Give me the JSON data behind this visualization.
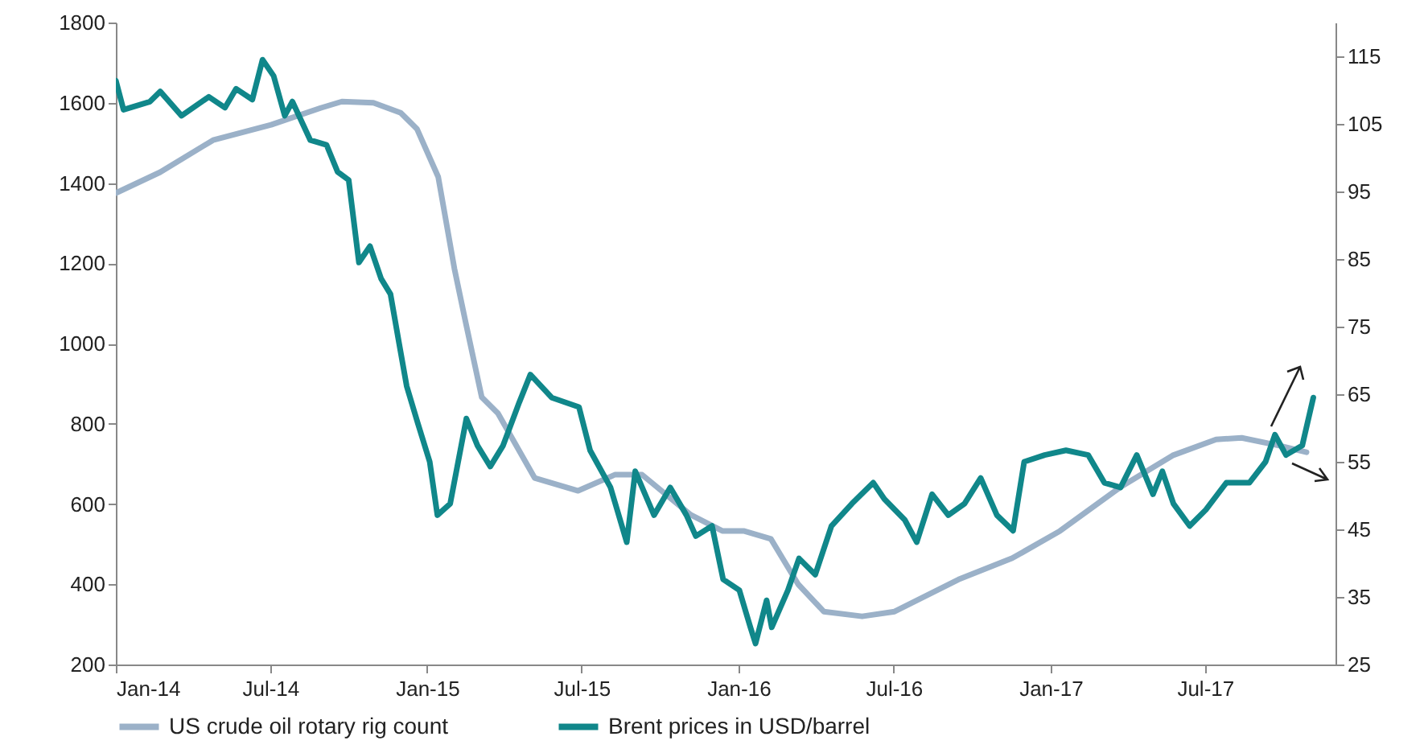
{
  "chart_data": {
    "type": "line",
    "xlim": [
      "2014-01-01",
      "2017-12-01"
    ],
    "xticks": [
      {
        "value": "2014-01-01",
        "label": "Jan-14"
      },
      {
        "value": "2014-07-01",
        "label": "Jul-14"
      },
      {
        "value": "2015-01-01",
        "label": "Jan-15"
      },
      {
        "value": "2015-07-01",
        "label": "Jul-15"
      },
      {
        "value": "2016-01-01",
        "label": "Jan-16"
      },
      {
        "value": "2016-07-01",
        "label": "Jul-16"
      },
      {
        "value": "2017-01-01",
        "label": "Jan-17"
      },
      {
        "value": "2017-07-01",
        "label": "Jul-17"
      }
    ],
    "ylim": [
      200,
      1800
    ],
    "yticks": [
      200,
      400,
      600,
      800,
      1000,
      1200,
      1400,
      1600,
      1800
    ],
    "y2lim": [
      25,
      120
    ],
    "y2ticks": [
      25,
      35,
      45,
      55,
      65,
      75,
      85,
      95,
      105,
      115
    ],
    "grid": false,
    "legend": "bottom",
    "line_style": "solid",
    "series": [
      {
        "name": "US crude oil rotary rig count",
        "color": "#9bb1c8",
        "x": [
          "2014-01-01",
          "2014-02-22",
          "2014-04-25",
          "2014-07-02",
          "2014-08-29",
          "2014-09-23",
          "2014-10-30",
          "2014-12-01",
          "2014-12-20",
          "2015-01-14",
          "2015-02-02",
          "2015-02-15",
          "2015-03-06",
          "2015-03-25",
          "2015-05-07",
          "2015-06-27",
          "2015-08-09",
          "2015-09-10",
          "2015-11-06",
          "2015-12-13",
          "2016-01-07",
          "2016-02-08",
          "2016-03-11",
          "2016-04-10",
          "2016-05-25",
          "2016-07-02",
          "2016-09-15",
          "2016-11-17",
          "2017-01-12",
          "2017-03-23",
          "2017-05-24",
          "2017-07-14",
          "2017-08-13",
          "2017-09-27",
          "2017-10-28"
        ],
        "values": [
          1375,
          1427,
          1507,
          1545,
          1587,
          1603,
          1600,
          1575,
          1535,
          1415,
          1186,
          1054,
          866,
          826,
          665,
          633,
          673,
          673,
          573,
          533,
          533,
          513,
          400,
          332,
          320,
          332,
          412,
          465,
          533,
          641,
          721,
          761,
          765,
          745,
          729
        ]
      },
      {
        "name": "Brent prices in USD/barrel",
        "color": "#10878a",
        "axis": "y2",
        "x": [
          "2014-01-01",
          "2014-01-10",
          "2014-02-10",
          "2014-02-22",
          "2014-03-19",
          "2014-04-20",
          "2014-05-09",
          "2014-05-22",
          "2014-06-10",
          "2014-06-22",
          "2014-07-05",
          "2014-07-18",
          "2014-07-27",
          "2014-08-17",
          "2014-09-05",
          "2014-09-18",
          "2014-10-01",
          "2014-10-13",
          "2014-10-26",
          "2014-11-08",
          "2014-11-19",
          "2014-11-29",
          "2014-12-08",
          "2014-12-21",
          "2015-01-04",
          "2015-01-13",
          "2015-01-28",
          "2015-02-16",
          "2015-03-01",
          "2015-03-16",
          "2015-03-31",
          "2015-04-19",
          "2015-05-02",
          "2015-05-27",
          "2015-06-28",
          "2015-07-11",
          "2015-08-04",
          "2015-08-23",
          "2015-09-02",
          "2015-09-24",
          "2015-10-13",
          "2015-11-01",
          "2015-11-12",
          "2015-12-01",
          "2015-12-14",
          "2016-01-02",
          "2016-01-15",
          "2016-01-21",
          "2016-02-03",
          "2016-02-09",
          "2016-02-28",
          "2016-03-12",
          "2016-03-31",
          "2016-04-19",
          "2016-05-13",
          "2016-06-07",
          "2016-06-20",
          "2016-07-14",
          "2016-07-28",
          "2016-08-15",
          "2016-09-03",
          "2016-09-22",
          "2016-10-11",
          "2016-10-30",
          "2016-11-18",
          "2016-12-01",
          "2016-12-25",
          "2017-01-19",
          "2017-02-14",
          "2017-03-05",
          "2017-03-24",
          "2017-04-12",
          "2017-05-01",
          "2017-05-12",
          "2017-05-25",
          "2017-06-13",
          "2017-07-02",
          "2017-07-26",
          "2017-08-22",
          "2017-09-10",
          "2017-09-21",
          "2017-10-04",
          "2017-10-23",
          "2017-11-05"
        ],
        "values": [
          111.4,
          107.1,
          108.3,
          109.8,
          106.2,
          109,
          107.4,
          110.2,
          108.6,
          114.5,
          112.1,
          106.2,
          108.3,
          102.6,
          101.9,
          97.9,
          96.7,
          84.5,
          86.9,
          82.1,
          79.8,
          72.6,
          66.2,
          60.7,
          55,
          47.1,
          48.8,
          61.4,
          57.4,
          54.3,
          57.4,
          63.8,
          67.9,
          64.5,
          63.1,
          56.7,
          51.2,
          43.1,
          53.6,
          47.1,
          51.2,
          47.1,
          44,
          45.5,
          37.6,
          36,
          30.5,
          28.1,
          34.5,
          30.5,
          36,
          40.7,
          38.3,
          45.5,
          48.8,
          51.9,
          49.5,
          46.4,
          43.1,
          50.2,
          47.1,
          48.8,
          52.6,
          47.1,
          44.8,
          55,
          56,
          56.7,
          56,
          51.9,
          51.2,
          56,
          50.2,
          53.6,
          48.8,
          45.5,
          47.9,
          51.9,
          51.9,
          55,
          59,
          56,
          57.4,
          64.5
        ]
      }
    ]
  }
}
